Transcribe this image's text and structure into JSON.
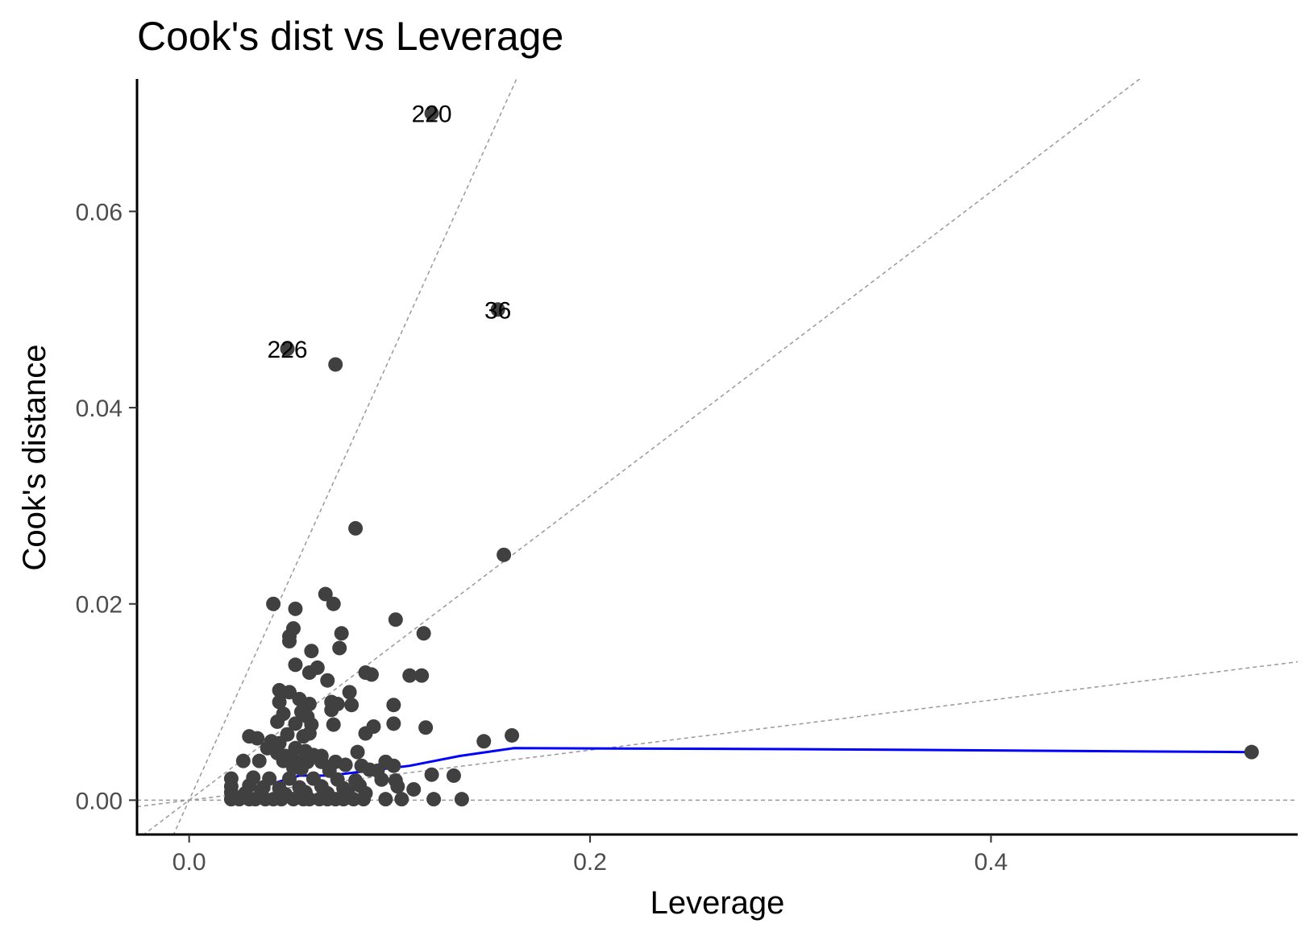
{
  "chart_data": {
    "type": "scatter",
    "title": "Cook's dist vs Leverage",
    "xlabel": "Leverage",
    "ylabel": "Cook's distance",
    "xlim": [
      -0.026,
      0.553
    ],
    "ylim": [
      -0.0035,
      0.0735
    ],
    "x_ticks": [
      {
        "value": 0.0,
        "label": "0.0"
      },
      {
        "value": 0.2,
        "label": "0.2"
      },
      {
        "value": 0.4,
        "label": "0.4"
      }
    ],
    "y_ticks": [
      {
        "value": 0.0,
        "label": "0.00"
      },
      {
        "value": 0.02,
        "label": "0.02"
      },
      {
        "value": 0.04,
        "label": "0.04"
      },
      {
        "value": 0.06,
        "label": "0.06"
      }
    ],
    "grid": false,
    "point_color": "#404040",
    "smooth_color": "#0000ff",
    "reference_color": "#999999",
    "labeled_points": [
      {
        "label": "220",
        "x": 0.121,
        "y": 0.07
      },
      {
        "label": "36",
        "x": 0.154,
        "y": 0.05
      },
      {
        "label": "226",
        "x": 0.049,
        "y": 0.046
      }
    ],
    "points": [
      [
        0.073,
        0.0444
      ],
      [
        0.083,
        0.0277
      ],
      [
        0.157,
        0.025
      ],
      [
        0.042,
        0.02
      ],
      [
        0.068,
        0.021
      ],
      [
        0.072,
        0.02
      ],
      [
        0.053,
        0.0195
      ],
      [
        0.103,
        0.0184
      ],
      [
        0.117,
        0.017
      ],
      [
        0.052,
        0.0175
      ],
      [
        0.076,
        0.017
      ],
      [
        0.05,
        0.0167
      ],
      [
        0.05,
        0.0162
      ],
      [
        0.061,
        0.0152
      ],
      [
        0.075,
        0.0155
      ],
      [
        0.053,
        0.0138
      ],
      [
        0.064,
        0.0135
      ],
      [
        0.06,
        0.013
      ],
      [
        0.088,
        0.013
      ],
      [
        0.091,
        0.0128
      ],
      [
        0.11,
        0.0127
      ],
      [
        0.116,
        0.0127
      ],
      [
        0.069,
        0.0122
      ],
      [
        0.045,
        0.0112
      ],
      [
        0.05,
        0.011
      ],
      [
        0.08,
        0.011
      ],
      [
        0.055,
        0.0103
      ],
      [
        0.045,
        0.01
      ],
      [
        0.06,
        0.0098
      ],
      [
        0.071,
        0.01
      ],
      [
        0.074,
        0.0098
      ],
      [
        0.081,
        0.0097
      ],
      [
        0.102,
        0.0097
      ],
      [
        0.056,
        0.009
      ],
      [
        0.047,
        0.0088
      ],
      [
        0.059,
        0.0085
      ],
      [
        0.071,
        0.0092
      ],
      [
        0.044,
        0.008
      ],
      [
        0.053,
        0.0078
      ],
      [
        0.061,
        0.0077
      ],
      [
        0.072,
        0.0077
      ],
      [
        0.102,
        0.0078
      ],
      [
        0.118,
        0.0074
      ],
      [
        0.092,
        0.0075
      ],
      [
        0.088,
        0.0068
      ],
      [
        0.03,
        0.0065
      ],
      [
        0.034,
        0.0063
      ],
      [
        0.049,
        0.0067
      ],
      [
        0.057,
        0.0065
      ],
      [
        0.06,
        0.0068
      ],
      [
        0.161,
        0.0066
      ],
      [
        0.147,
        0.006
      ],
      [
        0.041,
        0.006
      ],
      [
        0.045,
        0.0058
      ],
      [
        0.039,
        0.0053
      ],
      [
        0.053,
        0.0053
      ],
      [
        0.058,
        0.005
      ],
      [
        0.044,
        0.0048
      ],
      [
        0.048,
        0.0045
      ],
      [
        0.062,
        0.0046
      ],
      [
        0.066,
        0.0045
      ],
      [
        0.084,
        0.0049
      ],
      [
        0.027,
        0.004
      ],
      [
        0.035,
        0.004
      ],
      [
        0.047,
        0.004
      ],
      [
        0.053,
        0.004
      ],
      [
        0.059,
        0.0039
      ],
      [
        0.066,
        0.0039
      ],
      [
        0.073,
        0.0039
      ],
      [
        0.078,
        0.0036
      ],
      [
        0.086,
        0.0035
      ],
      [
        0.098,
        0.0039
      ],
      [
        0.102,
        0.0035
      ],
      [
        0.052,
        0.0033
      ],
      [
        0.056,
        0.0032
      ],
      [
        0.07,
        0.003
      ],
      [
        0.09,
        0.0031
      ],
      [
        0.094,
        0.003
      ],
      [
        0.121,
        0.0026
      ],
      [
        0.132,
        0.0025
      ],
      [
        0.021,
        0.0022
      ],
      [
        0.032,
        0.0023
      ],
      [
        0.04,
        0.0022
      ],
      [
        0.05,
        0.0022
      ],
      [
        0.062,
        0.0022
      ],
      [
        0.074,
        0.0021
      ],
      [
        0.083,
        0.002
      ],
      [
        0.096,
        0.0021
      ],
      [
        0.103,
        0.002
      ],
      [
        0.021,
        0.0014
      ],
      [
        0.03,
        0.0015
      ],
      [
        0.037,
        0.0013
      ],
      [
        0.045,
        0.0012
      ],
      [
        0.055,
        0.0013
      ],
      [
        0.066,
        0.0014
      ],
      [
        0.077,
        0.0012
      ],
      [
        0.085,
        0.0015
      ],
      [
        0.104,
        0.0014
      ],
      [
        0.112,
        0.0011
      ],
      [
        0.021,
        0.0008
      ],
      [
        0.028,
        0.0007
      ],
      [
        0.036,
        0.0008
      ],
      [
        0.048,
        0.0006
      ],
      [
        0.058,
        0.0008
      ],
      [
        0.069,
        0.0007
      ],
      [
        0.079,
        0.0008
      ],
      [
        0.088,
        0.0007
      ],
      [
        0.021,
        0.0001
      ],
      [
        0.025,
        0.0001
      ],
      [
        0.03,
        0.0001
      ],
      [
        0.033,
        0.0001
      ],
      [
        0.038,
        0.0001
      ],
      [
        0.042,
        0.0001
      ],
      [
        0.046,
        0.0001
      ],
      [
        0.052,
        0.0001
      ],
      [
        0.057,
        0.0001
      ],
      [
        0.06,
        0.0001
      ],
      [
        0.065,
        0.0001
      ],
      [
        0.069,
        0.0001
      ],
      [
        0.073,
        0.0001
      ],
      [
        0.077,
        0.0001
      ],
      [
        0.082,
        0.0001
      ],
      [
        0.087,
        0.0001
      ],
      [
        0.098,
        0.0001
      ],
      [
        0.106,
        0.0001
      ],
      [
        0.122,
        0.0001
      ],
      [
        0.136,
        0.0001
      ],
      [
        0.53,
        0.0049
      ]
    ],
    "smooth_line": [
      [
        0.022,
        0.0007
      ],
      [
        0.04,
        0.0016
      ],
      [
        0.055,
        0.0025
      ],
      [
        0.07,
        0.0025
      ],
      [
        0.09,
        0.003
      ],
      [
        0.11,
        0.0035
      ],
      [
        0.135,
        0.0045
      ],
      [
        0.162,
        0.0053
      ],
      [
        0.3,
        0.0052
      ],
      [
        0.53,
        0.0049
      ]
    ],
    "reference_lines": [
      {
        "slope": 0.45
      },
      {
        "slope": 0.155
      },
      {
        "slope": 0.0255
      }
    ]
  }
}
